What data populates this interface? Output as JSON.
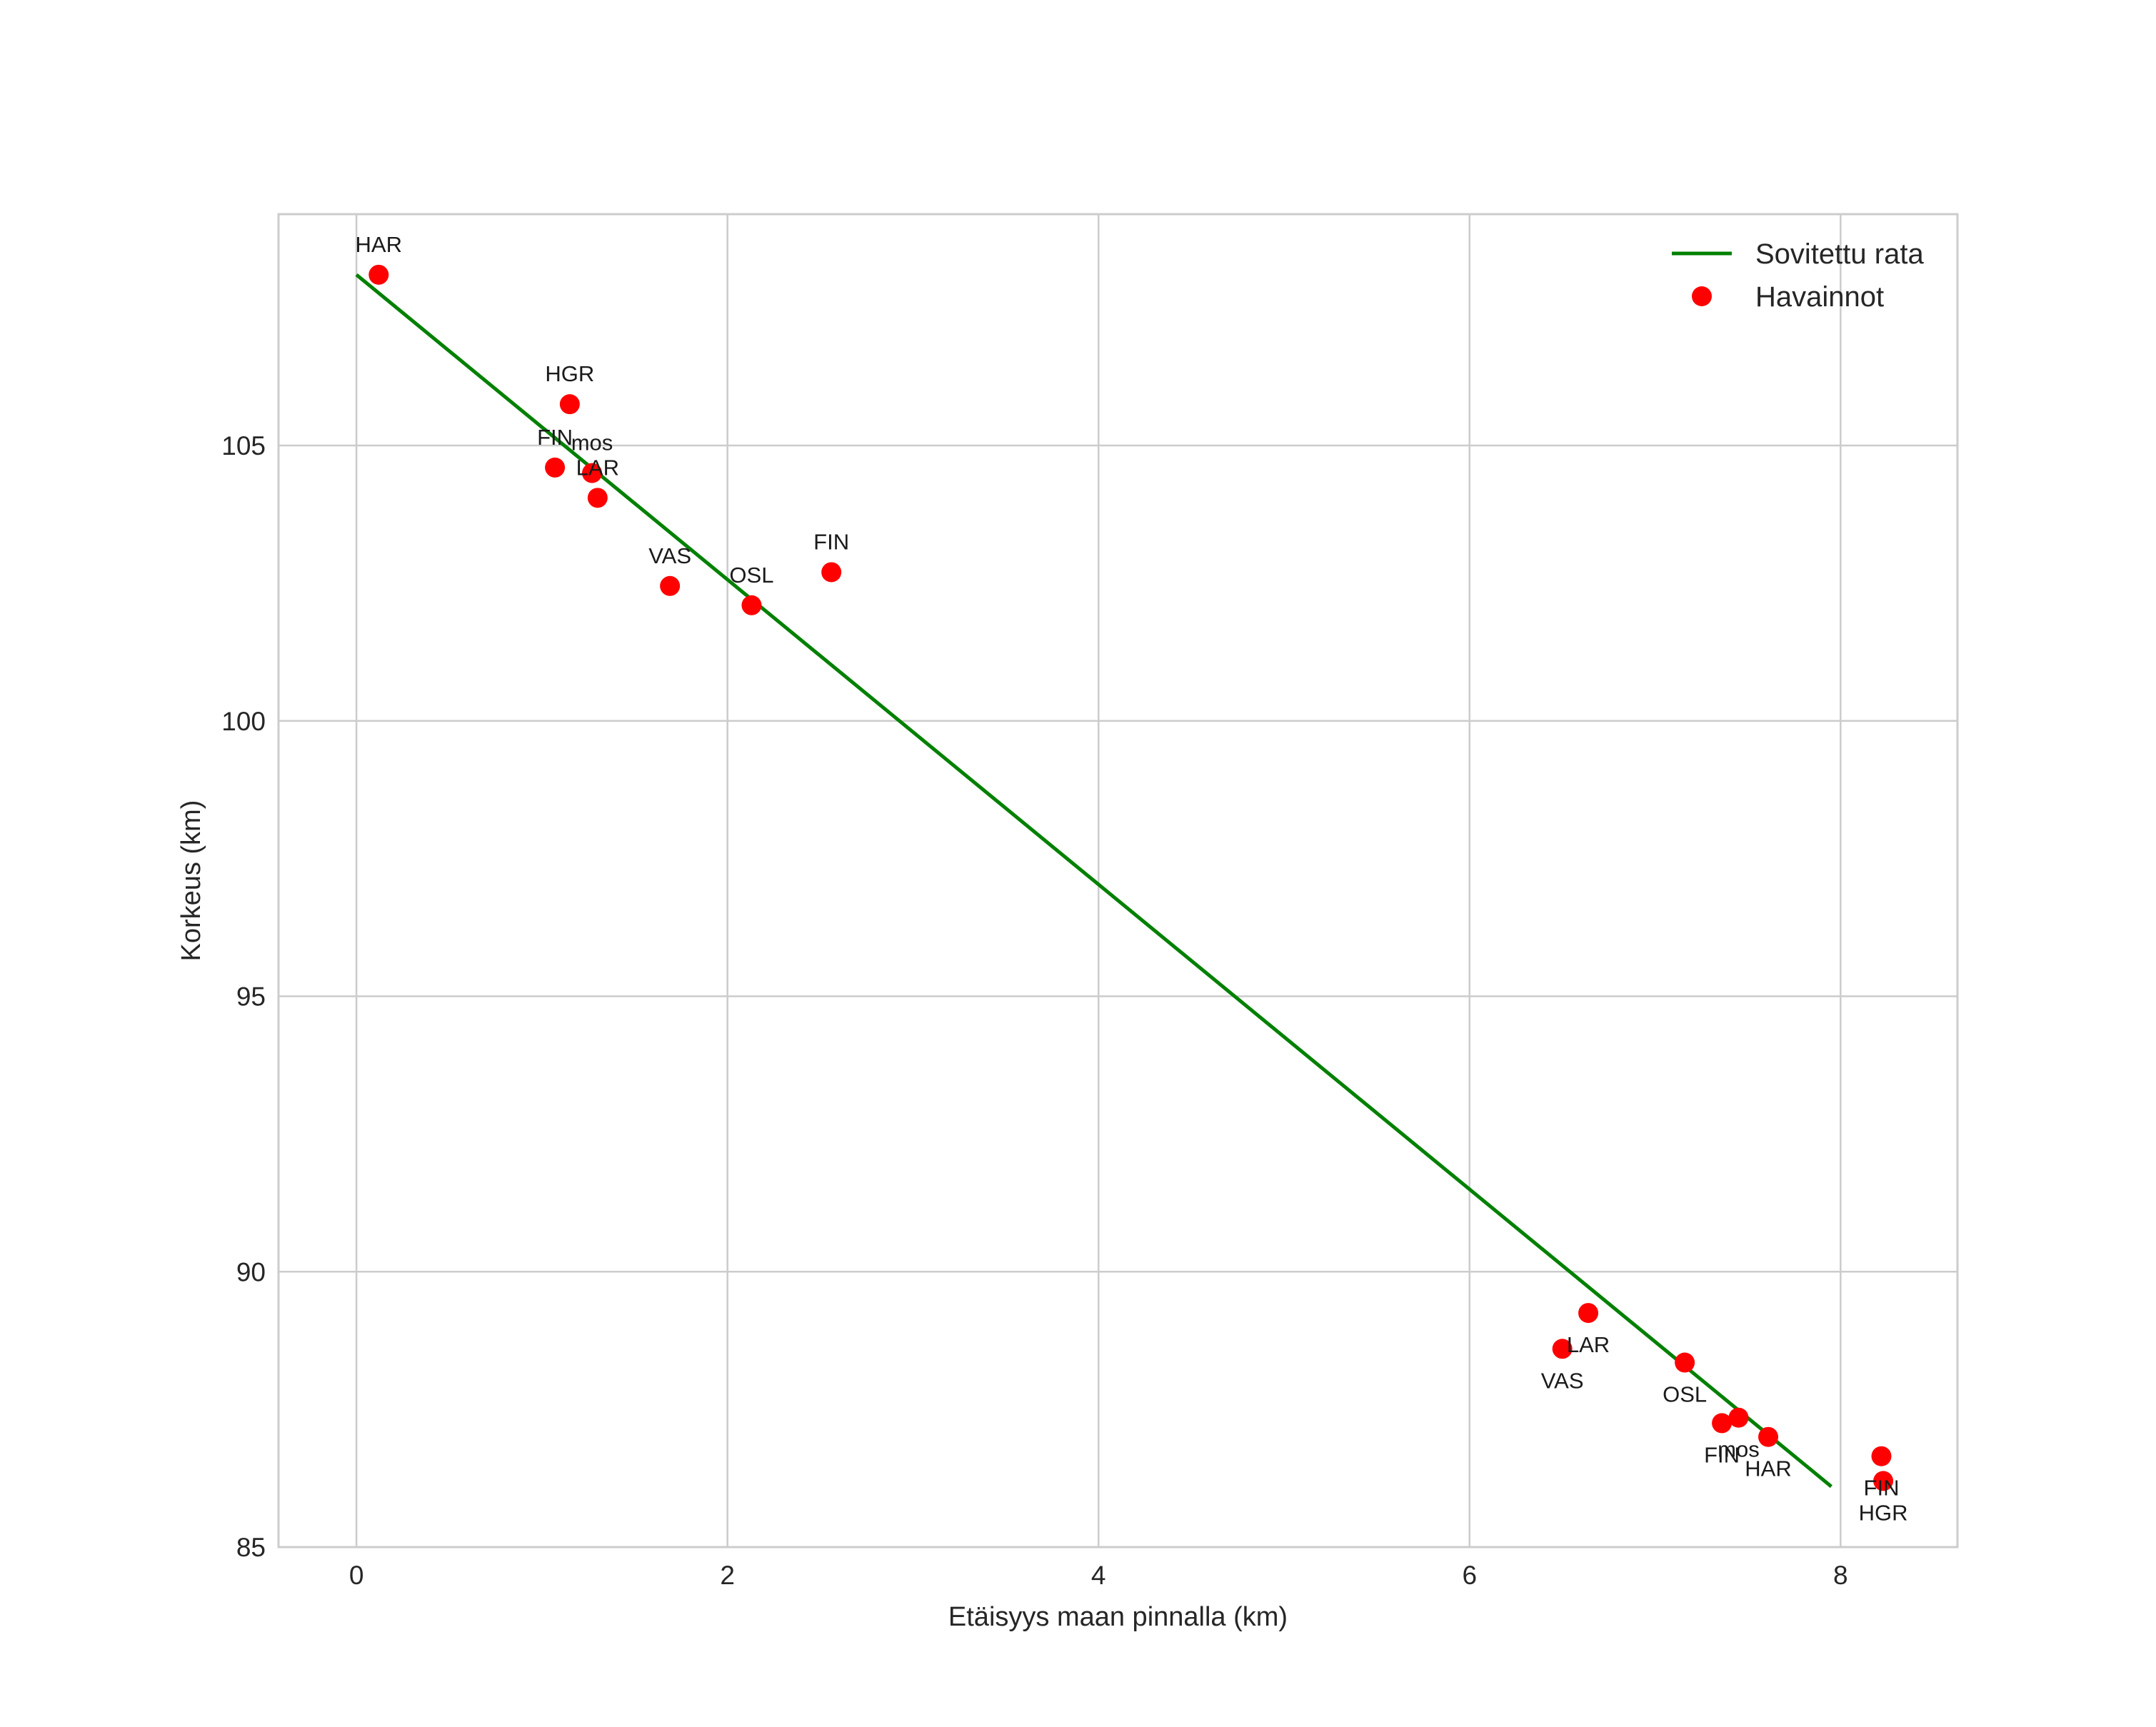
{
  "chart_data": {
    "type": "scatter",
    "title": "",
    "xlabel": "Etäisyys maan pinnalla (km)",
    "ylabel": "Korkeus (km)",
    "xlim": [
      -0.42,
      8.63
    ],
    "ylim": [
      85,
      109.2
    ],
    "x_ticks": [
      0,
      2,
      4,
      6,
      8
    ],
    "y_ticks": [
      85,
      90,
      95,
      100,
      105
    ],
    "grid": true,
    "legend_position": "top-right",
    "series": [
      {
        "name": "Sovitettu rata",
        "kind": "line",
        "color": "#008000",
        "x": [
          0.0,
          7.95
        ],
        "y": [
          108.1,
          86.1
        ]
      },
      {
        "name": "Havainnot",
        "kind": "scatter",
        "color": "#ff0000",
        "points": [
          {
            "label": "HAR",
            "x": 0.12,
            "y": 108.1,
            "label_pos": "above"
          },
          {
            "label": "HGR",
            "x": 1.15,
            "y": 105.75,
            "label_pos": "above"
          },
          {
            "label": "FIN",
            "x": 1.07,
            "y": 104.6,
            "label_pos": "above"
          },
          {
            "label": "mos",
            "x": 1.27,
            "y": 104.5,
            "label_pos": "above"
          },
          {
            "label": "LAR",
            "x": 1.3,
            "y": 104.05,
            "label_pos": "above"
          },
          {
            "label": "VAS",
            "x": 1.69,
            "y": 102.45,
            "label_pos": "above"
          },
          {
            "label": "OSL",
            "x": 2.13,
            "y": 102.1,
            "label_pos": "above"
          },
          {
            "label": "FIN",
            "x": 2.56,
            "y": 102.7,
            "label_pos": "above"
          },
          {
            "label": "LAR",
            "x": 6.64,
            "y": 89.25,
            "label_pos": "below"
          },
          {
            "label": "VAS",
            "x": 6.5,
            "y": 88.6,
            "label_pos": "below"
          },
          {
            "label": "OSL",
            "x": 7.16,
            "y": 88.35,
            "label_pos": "below"
          },
          {
            "label": "FIN",
            "x": 7.36,
            "y": 87.25,
            "label_pos": "below"
          },
          {
            "label": "mos",
            "x": 7.45,
            "y": 87.35,
            "label_pos": "below"
          },
          {
            "label": "HAR",
            "x": 7.61,
            "y": 87.0,
            "label_pos": "below"
          },
          {
            "label": "FIN",
            "x": 8.22,
            "y": 86.65,
            "label_pos": "below"
          },
          {
            "label": "HGR",
            "x": 8.23,
            "y": 86.2,
            "label_pos": "below"
          }
        ]
      }
    ]
  }
}
